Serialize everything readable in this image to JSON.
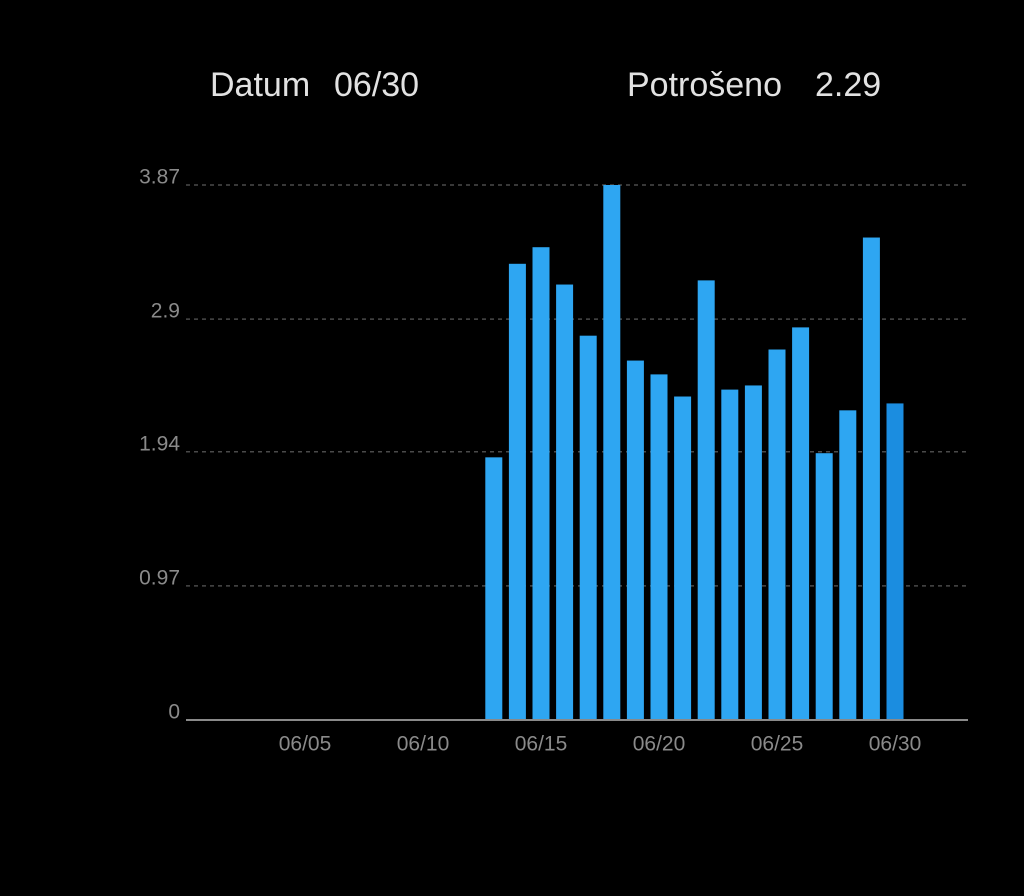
{
  "header": {
    "date_label": "Datum",
    "date_value": "06/30",
    "spent_label": "Potrošeno",
    "spent_value": 2.29
  },
  "chart_data": {
    "type": "bar",
    "categories": [
      null,
      null,
      null,
      null,
      "06/05",
      null,
      null,
      null,
      null,
      "06/10",
      null,
      null,
      null,
      null,
      "06/15",
      null,
      null,
      null,
      null,
      "06/20",
      null,
      null,
      null,
      null,
      "06/25",
      null,
      null,
      null,
      null,
      "06/30"
    ],
    "values": [
      null,
      null,
      null,
      null,
      null,
      null,
      null,
      null,
      null,
      null,
      null,
      null,
      1.9,
      3.3,
      3.42,
      3.15,
      2.78,
      3.87,
      2.6,
      2.5,
      2.34,
      3.18,
      2.39,
      2.42,
      2.68,
      2.84,
      1.93,
      2.24,
      3.49,
      2.29
    ],
    "color": "#2ea6f2",
    "selected_color": "#1b8de0",
    "ylim": [
      0,
      3.87
    ],
    "yticks": [
      0,
      0.97,
      1.94,
      2.9,
      3.87
    ],
    "grid": true
  }
}
